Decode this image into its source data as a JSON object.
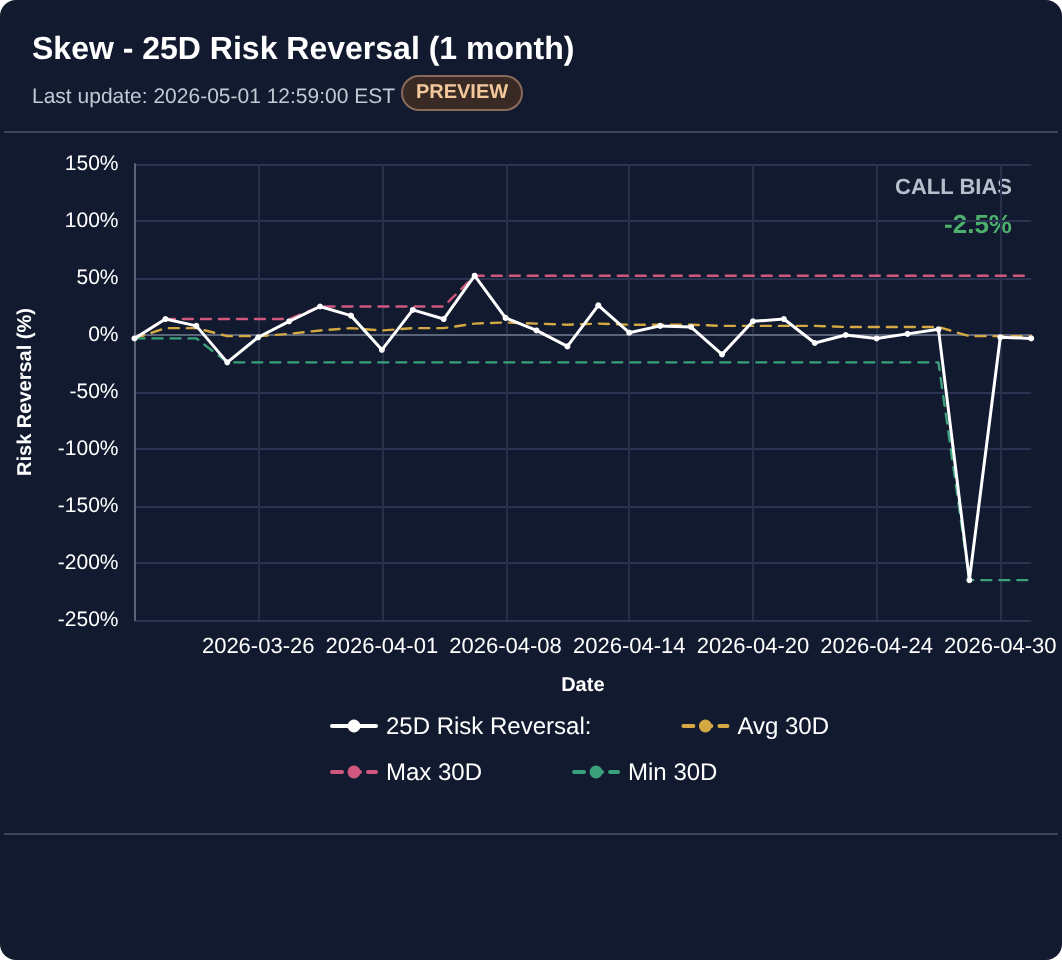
{
  "chart_data": {
    "type": "line",
    "title": "Skew - 25D Risk Reversal (1 month)",
    "subtitle": "Last update: 2026-05-01 12:59:00 EST",
    "annotations": [
      "PREVIEW",
      "CALL BIAS",
      "-2.5%"
    ],
    "xlabel": "Date",
    "ylabel": "Risk Reversal (%)",
    "categories": [
      null,
      null,
      null,
      null,
      "2026-03-26",
      null,
      null,
      null,
      "2026-04-01",
      null,
      null,
      null,
      "2026-04-08",
      null,
      null,
      null,
      "2026-04-14",
      null,
      null,
      null,
      "2026-04-20",
      null,
      null,
      null,
      "2026-04-24",
      null,
      null,
      null,
      "2026-04-30",
      null
    ],
    "series": [
      {
        "name": "25D Risk Reversal:",
        "color": "#ffffff",
        "marker": "circle",
        "line_style": "solid",
        "values": [
          -3,
          14,
          8,
          -24,
          -2,
          12,
          25,
          17,
          -13,
          22,
          14,
          52,
          15,
          4,
          -10,
          26,
          2,
          8,
          7,
          -17,
          12,
          14,
          -7,
          0,
          -3,
          1,
          5,
          -215,
          -2,
          -3
        ]
      },
      {
        "name": "Avg 30D",
        "color": "#d4a843",
        "marker": "none",
        "line_style": "dashed",
        "values": [
          -3,
          6,
          6,
          -1,
          -1,
          1,
          4,
          6,
          4,
          6,
          6,
          10,
          11,
          10,
          9,
          10,
          9,
          9,
          9,
          8,
          8,
          8,
          8,
          7,
          7,
          7,
          7,
          -1,
          -1,
          -1
        ]
      },
      {
        "name": "Max 30D",
        "color": "#d0587e",
        "marker": "none",
        "line_style": "dashed",
        "values": [
          -3,
          14,
          14,
          14,
          14,
          14,
          25,
          25,
          25,
          25,
          25,
          52,
          52,
          52,
          52,
          52,
          52,
          52,
          52,
          52,
          52,
          52,
          52,
          52,
          52,
          52,
          52,
          52,
          52,
          52
        ]
      },
      {
        "name": "Min 30D",
        "color": "#3aa17a",
        "marker": "none",
        "line_style": "dashed",
        "values": [
          -3,
          -3,
          -3,
          -24,
          -24,
          -24,
          -24,
          -24,
          -24,
          -24,
          -24,
          -24,
          -24,
          -24,
          -24,
          -24,
          -24,
          -24,
          -24,
          -24,
          -24,
          -24,
          -24,
          -24,
          -24,
          -24,
          -24,
          -215,
          -215,
          -215
        ]
      }
    ],
    "ylim": [
      -250,
      150
    ],
    "yticks": [
      {
        "value": -250,
        "label": "-250%"
      },
      {
        "value": -200,
        "label": "-200%"
      },
      {
        "value": -150,
        "label": "-150%"
      },
      {
        "value": -100,
        "label": "-100%"
      },
      {
        "value": -50,
        "label": "-50%"
      },
      {
        "value": 0,
        "label": "0%"
      },
      {
        "value": 50,
        "label": "50%"
      },
      {
        "value": 100,
        "label": "100%"
      },
      {
        "value": 150,
        "label": "150%"
      }
    ],
    "grid": true,
    "legend": "bottom"
  }
}
